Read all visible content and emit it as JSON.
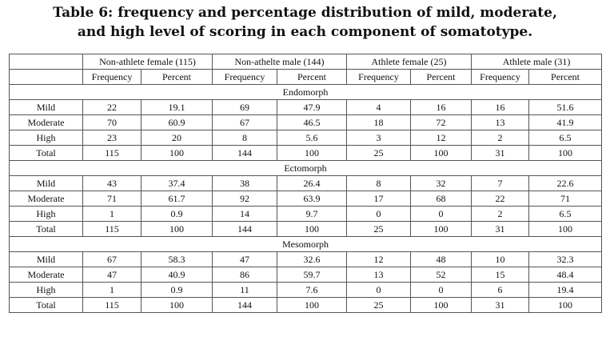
{
  "caption": {
    "line1": "Table 6: frequency and percentage distribution of mild, moderate,",
    "line2": "and high level of scoring in each component of somatotype."
  },
  "header": {
    "groups": [
      "Non-athlete female (115)",
      "Non-athelte male (144)",
      "Athlete female (25)",
      "Athlete male (31)"
    ],
    "sub": [
      "Frequency",
      "Percent",
      "Frequency",
      "Percent",
      "Frequency",
      "Percent",
      "Frequency",
      "Percent"
    ]
  },
  "sections": [
    {
      "name": "Endomorph",
      "rows": [
        {
          "label": "Mild",
          "cells": [
            "22",
            "19.1",
            "69",
            "47.9",
            "4",
            "16",
            "16",
            "51.6"
          ]
        },
        {
          "label": "Moderate",
          "cells": [
            "70",
            "60.9",
            "67",
            "46.5",
            "18",
            "72",
            "13",
            "41.9"
          ]
        },
        {
          "label": "High",
          "cells": [
            "23",
            "20",
            "8",
            "5.6",
            "3",
            "12",
            "2",
            "6.5"
          ]
        },
        {
          "label": "Total",
          "cells": [
            "115",
            "100",
            "144",
            "100",
            "25",
            "100",
            "31",
            "100"
          ]
        }
      ]
    },
    {
      "name": "Ectomorph",
      "rows": [
        {
          "label": "Mild",
          "cells": [
            "43",
            "37.4",
            "38",
            "26.4",
            "8",
            "32",
            "7",
            "22.6"
          ]
        },
        {
          "label": "Moderate",
          "cells": [
            "71",
            "61.7",
            "92",
            "63.9",
            "17",
            "68",
            "22",
            "71"
          ]
        },
        {
          "label": "High",
          "cells": [
            "1",
            "0.9",
            "14",
            "9.7",
            "0",
            "0",
            "2",
            "6.5"
          ]
        },
        {
          "label": "Total",
          "cells": [
            "115",
            "100",
            "144",
            "100",
            "25",
            "100",
            "31",
            "100"
          ]
        }
      ]
    },
    {
      "name": "Mesomorph",
      "rows": [
        {
          "label": "Mild",
          "cells": [
            "67",
            "58.3",
            "47",
            "32.6",
            "12",
            "48",
            "10",
            "32.3"
          ]
        },
        {
          "label": "Moderate",
          "cells": [
            "47",
            "40.9",
            "86",
            "59.7",
            "13",
            "52",
            "15",
            "48.4"
          ]
        },
        {
          "label": "High",
          "cells": [
            "1",
            "0.9",
            "11",
            "7.6",
            "0",
            "0",
            "6",
            "19.4"
          ]
        },
        {
          "label": "Total",
          "cells": [
            "115",
            "100",
            "144",
            "100",
            "25",
            "100",
            "31",
            "100"
          ]
        }
      ]
    }
  ]
}
